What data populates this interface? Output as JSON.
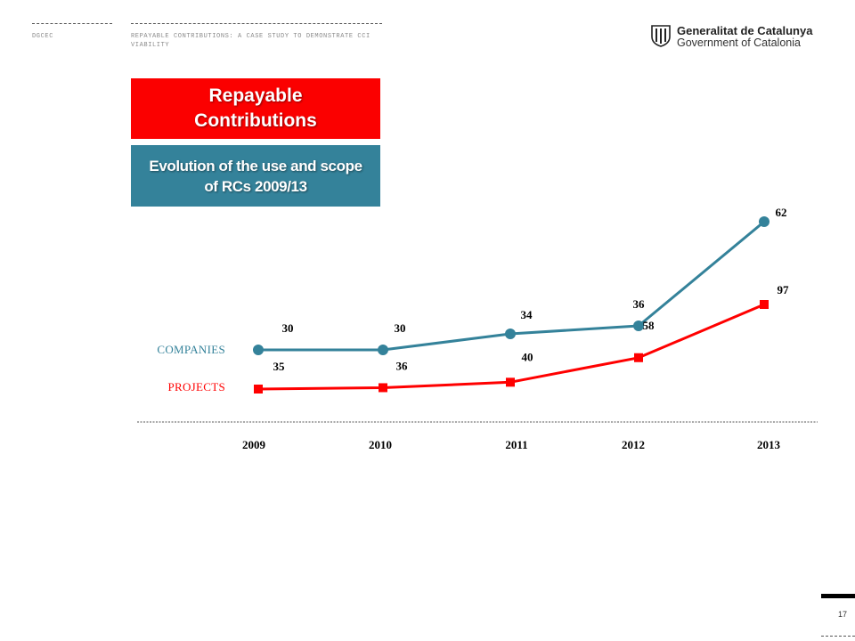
{
  "header": {
    "left_label": "DGCEC",
    "doc_title": "REPAYABLE CONTRIBUTIONS: A CASE STUDY TO DEMONSTRATE CCI VIABILITY",
    "logo_line1": "Generalitat de Catalunya",
    "logo_line2": "Government of Catalonia"
  },
  "title_box": {
    "text": "Repayable Contributions",
    "color": "#fb0000"
  },
  "subtitle_box": {
    "text": "Evolution of the use and scope of RCs 2009/13",
    "color": "#34829a"
  },
  "chart_data": {
    "type": "line",
    "title": "",
    "xlabel": "",
    "ylabel": "",
    "categories": [
      "2009",
      "2010",
      "2011",
      "2012",
      "2013"
    ],
    "grid": false,
    "legend": "left of lines",
    "series": [
      {
        "name": "COMPANIES",
        "values": [
          30,
          30,
          34,
          36,
          62
        ],
        "color": "#34829a",
        "marker": "circle"
      },
      {
        "name": "PROJECTS",
        "values": [
          35,
          36,
          40,
          58,
          97
        ],
        "color": "#ff0000",
        "marker": "square"
      }
    ]
  },
  "footer": {
    "page_number": "17"
  }
}
